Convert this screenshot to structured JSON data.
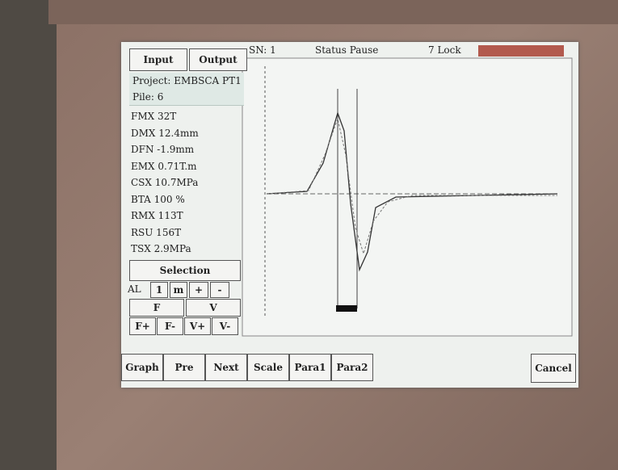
{
  "header": {
    "sn": "SN: 1",
    "status": "Status Pause",
    "lock": "7 Lock"
  },
  "tabs": [
    "Input",
    "Output"
  ],
  "project": "Project: EMBSCA PT1",
  "pile": "Pile: 6",
  "results": [
    "FMX 32T",
    "DMX 12.4mm",
    "DFN -1.9mm",
    "EMX 0.71T.m",
    "CSX 10.7MPa",
    "BTA 100 %",
    "RMX 113T",
    "RSU 156T",
    "TSX 2.9MPa"
  ],
  "selection": {
    "title": "Selection",
    "controls": [
      "AL",
      "1",
      "m",
      "+",
      "-"
    ],
    "channels": [
      "F",
      "V"
    ],
    "buttons": [
      "F+",
      "F-",
      "V+",
      "V-"
    ]
  },
  "toolbar": [
    "Graph",
    "Pre",
    "Next",
    "Scale",
    "Para1",
    "Para2"
  ],
  "cancel": "Cancel"
}
